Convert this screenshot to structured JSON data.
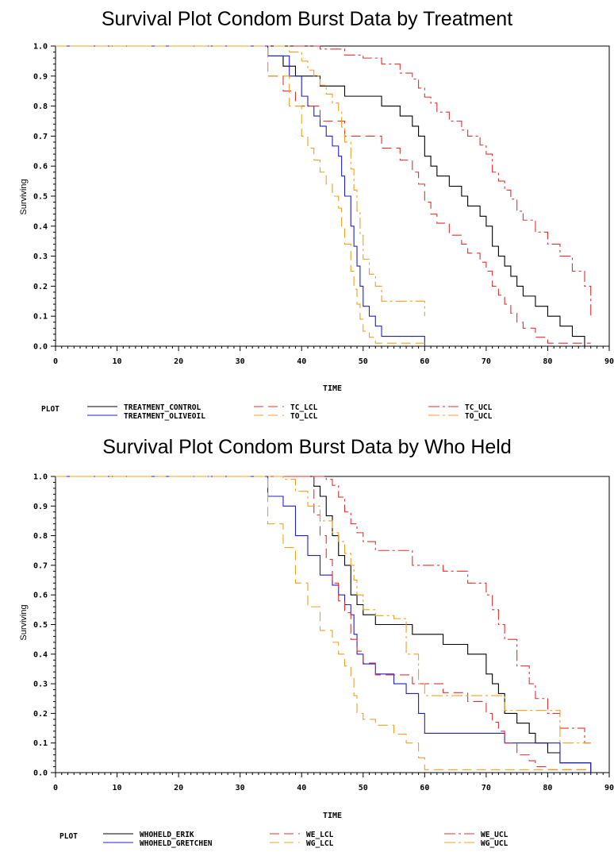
{
  "chart_data": [
    {
      "type": "line",
      "title": "Survival Plot Condom Burst Data by Treatment",
      "xlabel": "TIME",
      "ylabel": "Surviving",
      "xlim": [
        0,
        90
      ],
      "ylim": [
        0.0,
        1.0
      ],
      "xticks": [
        0,
        10,
        20,
        30,
        40,
        50,
        60,
        70,
        80,
        90
      ],
      "yticks": [
        0.0,
        0.1,
        0.2,
        0.3,
        0.4,
        0.5,
        0.6,
        0.7,
        0.8,
        0.9,
        1.0
      ],
      "xtick_labels": [
        "0",
        "10",
        "20",
        "30",
        "40",
        "50",
        "60",
        "70",
        "80",
        "90"
      ],
      "ytick_labels": [
        "0.0",
        "0.1",
        "0.2",
        "0.3",
        "0.4",
        "0.5",
        "0.6",
        "0.7",
        "0.8",
        "0.9",
        "1.0"
      ],
      "grid": false,
      "legend_label": "PLOT",
      "legend_position": "bottom",
      "series": [
        {
          "name": "TREATMENT_CONTROL",
          "color": "#000000",
          "dash": "solid",
          "x": [
            0,
            34.5,
            37,
            39,
            43,
            47,
            50,
            53,
            56,
            58,
            59,
            60,
            61,
            62,
            64,
            66,
            67,
            69,
            70,
            71,
            72,
            73,
            74,
            75,
            76,
            78,
            80,
            82,
            84,
            86,
            87
          ],
          "y": [
            1.0,
            0.967,
            0.933,
            0.9,
            0.867,
            0.833,
            0.833,
            0.8,
            0.767,
            0.733,
            0.7,
            0.633,
            0.6,
            0.567,
            0.533,
            0.5,
            0.467,
            0.433,
            0.4,
            0.333,
            0.3,
            0.267,
            0.233,
            0.2,
            0.167,
            0.133,
            0.1,
            0.067,
            0.033,
            0.0,
            0.0
          ]
        },
        {
          "name": "TREATMENT_OLIVEOIL",
          "color": "#1f1fcc",
          "dash": "solid",
          "x": [
            0,
            34.5,
            38,
            40,
            41,
            42,
            43,
            44,
            45,
            46,
            46.5,
            47,
            48,
            48.5,
            49,
            49.5,
            50,
            51,
            52,
            53,
            60
          ],
          "y": [
            1.0,
            0.967,
            0.9,
            0.833,
            0.8,
            0.767,
            0.733,
            0.7,
            0.667,
            0.633,
            0.567,
            0.5,
            0.4,
            0.333,
            0.267,
            0.2,
            0.133,
            0.1,
            0.067,
            0.033,
            0.0
          ]
        },
        {
          "name": "TC_LCL",
          "color": "#e03030",
          "dash": "dashed",
          "x": [
            0,
            34.5,
            37,
            39,
            43,
            47,
            50,
            53,
            56,
            58,
            59,
            60,
            61,
            62,
            64,
            66,
            67,
            69,
            70,
            71,
            72,
            73,
            74,
            75,
            76,
            78,
            80,
            82,
            84,
            86,
            87
          ],
          "y": [
            1.0,
            0.9,
            0.85,
            0.8,
            0.75,
            0.7,
            0.7,
            0.66,
            0.62,
            0.58,
            0.54,
            0.48,
            0.44,
            0.41,
            0.37,
            0.34,
            0.31,
            0.28,
            0.25,
            0.2,
            0.17,
            0.14,
            0.11,
            0.08,
            0.06,
            0.03,
            0.01,
            0.01,
            0.01,
            0.01,
            0.01
          ]
        },
        {
          "name": "TC_UCL",
          "color": "#e03030",
          "dash": "dashdot",
          "x": [
            0,
            34.5,
            37,
            39,
            43,
            47,
            50,
            53,
            56,
            58,
            59,
            60,
            61,
            62,
            64,
            66,
            67,
            69,
            70,
            71,
            72,
            73,
            74,
            75,
            76,
            78,
            80,
            82,
            84,
            86,
            87
          ],
          "y": [
            1.0,
            1.0,
            1.0,
            1.0,
            0.99,
            0.97,
            0.96,
            0.94,
            0.91,
            0.89,
            0.86,
            0.83,
            0.81,
            0.78,
            0.75,
            0.72,
            0.7,
            0.67,
            0.64,
            0.58,
            0.55,
            0.52,
            0.49,
            0.45,
            0.42,
            0.38,
            0.34,
            0.3,
            0.25,
            0.2,
            0.1
          ]
        },
        {
          "name": "TO_LCL",
          "color": "#f0a020",
          "dash": "dashed",
          "x": [
            0,
            34.5,
            38,
            40,
            41,
            42,
            43,
            44,
            45,
            46,
            46.5,
            47,
            48,
            48.5,
            49,
            49.5,
            50,
            51,
            52,
            53,
            60
          ],
          "y": [
            1.0,
            0.9,
            0.8,
            0.7,
            0.66,
            0.62,
            0.58,
            0.54,
            0.5,
            0.46,
            0.4,
            0.34,
            0.25,
            0.19,
            0.14,
            0.09,
            0.05,
            0.03,
            0.01,
            0.01,
            0.01
          ]
        },
        {
          "name": "TO_UCL",
          "color": "#f0a020",
          "dash": "dashdot",
          "x": [
            0,
            34.5,
            38,
            40,
            41,
            42,
            43,
            44,
            45,
            46,
            46.5,
            47,
            48,
            48.5,
            49,
            49.5,
            50,
            51,
            52,
            53,
            60
          ],
          "y": [
            1.0,
            1.0,
            0.98,
            0.95,
            0.92,
            0.9,
            0.87,
            0.84,
            0.81,
            0.78,
            0.73,
            0.68,
            0.59,
            0.52,
            0.45,
            0.37,
            0.29,
            0.24,
            0.2,
            0.15,
            0.1
          ]
        }
      ]
    },
    {
      "type": "line",
      "title": "Survival Plot Condom Burst Data by Who Held",
      "xlabel": "TIME",
      "ylabel": "Surviving",
      "xlim": [
        0,
        90
      ],
      "ylim": [
        0.0,
        1.0
      ],
      "xticks": [
        0,
        10,
        20,
        30,
        40,
        50,
        60,
        70,
        80,
        90
      ],
      "yticks": [
        0.0,
        0.1,
        0.2,
        0.3,
        0.4,
        0.5,
        0.6,
        0.7,
        0.8,
        0.9,
        1.0
      ],
      "xtick_labels": [
        "0",
        "10",
        "20",
        "30",
        "40",
        "50",
        "60",
        "70",
        "80",
        "90"
      ],
      "ytick_labels": [
        "0.0",
        "0.1",
        "0.2",
        "0.3",
        "0.4",
        "0.5",
        "0.6",
        "0.7",
        "0.8",
        "0.9",
        "1.0"
      ],
      "grid": false,
      "legend_label": "PLOT",
      "legend_position": "bottom",
      "series": [
        {
          "name": "WHOHELD_ERIK",
          "color": "#000000",
          "dash": "solid",
          "x": [
            0,
            42,
            43,
            44,
            45,
            46,
            47,
            48,
            49,
            50,
            52,
            58,
            63,
            67,
            70,
            71,
            72,
            73,
            75,
            77,
            78,
            80,
            82,
            86,
            87
          ],
          "y": [
            1.0,
            0.967,
            0.933,
            0.867,
            0.8,
            0.733,
            0.7,
            0.6,
            0.567,
            0.533,
            0.5,
            0.467,
            0.433,
            0.4,
            0.333,
            0.3,
            0.267,
            0.2,
            0.167,
            0.133,
            0.1,
            0.067,
            0.033,
            0.033,
            0.0
          ]
        },
        {
          "name": "WHOHELD_GRETCHEN",
          "color": "#1f1fcc",
          "dash": "solid",
          "x": [
            0,
            34.5,
            37,
            39,
            41,
            43,
            45,
            46,
            47,
            48,
            48.5,
            49,
            50,
            52,
            55,
            57,
            59,
            60,
            65,
            72,
            73,
            79,
            82,
            86,
            87
          ],
          "y": [
            1.0,
            0.933,
            0.9,
            0.8,
            0.733,
            0.667,
            0.633,
            0.6,
            0.567,
            0.533,
            0.467,
            0.4,
            0.367,
            0.333,
            0.3,
            0.267,
            0.2,
            0.133,
            0.133,
            0.133,
            0.1,
            0.1,
            0.033,
            0.033,
            0.0
          ]
        },
        {
          "name": "WE_LCL",
          "color": "#e03030",
          "dash": "dashed",
          "x": [
            0,
            42,
            43,
            44,
            45,
            46,
            47,
            48,
            49,
            50,
            52,
            58,
            63,
            67,
            70,
            71,
            72,
            73,
            75,
            77,
            78,
            80,
            82,
            86,
            87
          ],
          "y": [
            1.0,
            0.87,
            0.8,
            0.72,
            0.64,
            0.58,
            0.54,
            0.45,
            0.41,
            0.37,
            0.33,
            0.3,
            0.27,
            0.24,
            0.2,
            0.17,
            0.14,
            0.1,
            0.06,
            0.04,
            0.02,
            0.01,
            0.01,
            0.01,
            0.01
          ]
        },
        {
          "name": "WE_UCL",
          "color": "#e03030",
          "dash": "dashdot",
          "x": [
            0,
            42,
            43,
            44,
            45,
            46,
            47,
            48,
            49,
            50,
            52,
            58,
            63,
            67,
            70,
            71,
            72,
            73,
            75,
            77,
            78,
            80,
            82,
            86,
            87
          ],
          "y": [
            1.0,
            1.0,
            1.0,
            0.99,
            0.97,
            0.93,
            0.88,
            0.84,
            0.81,
            0.78,
            0.75,
            0.7,
            0.68,
            0.64,
            0.6,
            0.55,
            0.5,
            0.45,
            0.36,
            0.3,
            0.25,
            0.2,
            0.15,
            0.1,
            0.1
          ]
        },
        {
          "name": "WG_LCL",
          "color": "#f0a020",
          "dash": "dashed",
          "x": [
            0,
            34.5,
            37,
            39,
            41,
            43,
            45,
            46,
            47,
            48,
            48.5,
            49,
            50,
            52,
            55,
            57,
            59,
            60,
            65,
            72,
            73,
            79,
            82,
            86,
            87
          ],
          "y": [
            1.0,
            0.84,
            0.76,
            0.64,
            0.56,
            0.48,
            0.44,
            0.4,
            0.36,
            0.32,
            0.26,
            0.2,
            0.18,
            0.16,
            0.13,
            0.1,
            0.05,
            0.01,
            0.01,
            0.01,
            0.01,
            0.01,
            0.01,
            0.01,
            0.01
          ]
        },
        {
          "name": "WG_UCL",
          "color": "#f0a020",
          "dash": "dashdot",
          "x": [
            0,
            34.5,
            37,
            39,
            41,
            43,
            45,
            46,
            47,
            48,
            48.5,
            49,
            50,
            52,
            55,
            57,
            59,
            60,
            65,
            72,
            73,
            79,
            82,
            86,
            87
          ],
          "y": [
            1.0,
            1.0,
            0.99,
            0.95,
            0.9,
            0.85,
            0.81,
            0.78,
            0.74,
            0.7,
            0.65,
            0.6,
            0.55,
            0.53,
            0.52,
            0.4,
            0.3,
            0.26,
            0.26,
            0.26,
            0.21,
            0.21,
            0.1,
            0.1,
            0.1
          ]
        }
      ]
    }
  ]
}
